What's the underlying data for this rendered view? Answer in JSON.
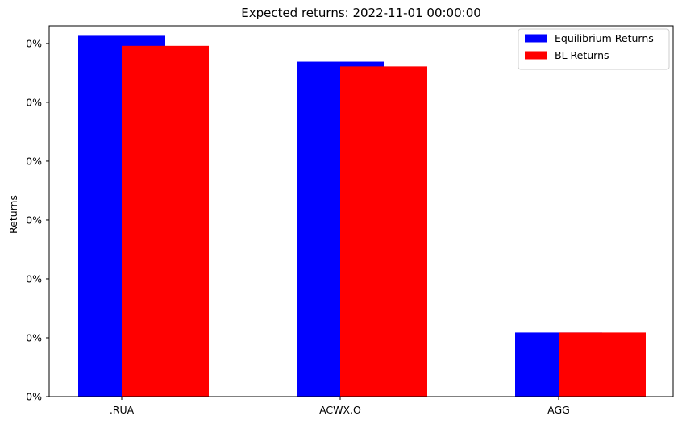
{
  "chart_data": {
    "type": "bar",
    "title": "Expected returns: 2022-11-01 00:00:00",
    "xlabel": "",
    "ylabel": "Returns",
    "categories": [
      ".RUA",
      "ACWX.O",
      "AGG"
    ],
    "series": [
      {
        "name": "Equilibrium Returns",
        "color": "#0000ff",
        "values": [
          0.00613,
          0.00569,
          0.00109
        ]
      },
      {
        "name": "BL Returns",
        "color": "#ff0000",
        "values": [
          0.00596,
          0.00561,
          0.00109
        ]
      }
    ],
    "yticks": [
      0,
      0.001,
      0.002,
      0.003,
      0.004,
      0.005,
      0.006
    ],
    "ytick_labels": [
      "0%",
      "0%",
      "0%",
      "0%",
      "0%",
      "0%",
      "0%"
    ],
    "ylim": [
      0,
      0.0063
    ],
    "grid": false,
    "legend_position": "top-right"
  }
}
